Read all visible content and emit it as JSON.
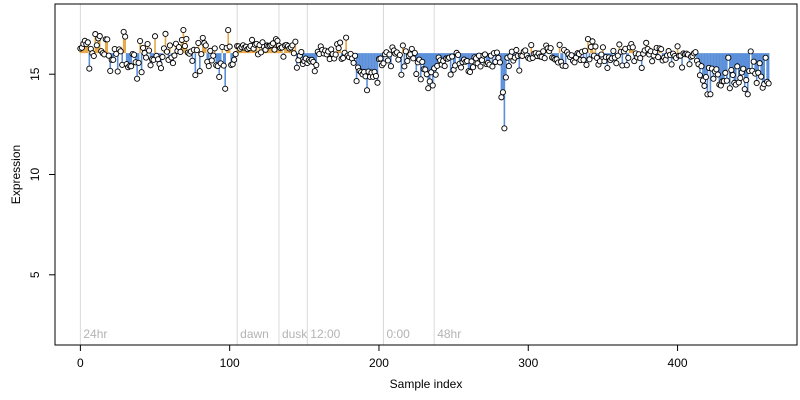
{
  "chart_data": {
    "type": "scatter",
    "title": "",
    "xlabel": "Sample index",
    "ylabel": "Expression",
    "xlim": [
      -17,
      480
    ],
    "ylim": [
      1.5,
      18.5
    ],
    "x_ticks": [
      0,
      100,
      200,
      300,
      400
    ],
    "y_ticks": [
      5,
      10,
      15
    ],
    "baseline": 16.05,
    "n_points": 462,
    "colors": {
      "above_baseline": "#e6a84a",
      "below_baseline": "#5b8fd9",
      "point_fill": "#ffffff",
      "point_stroke": "#000000",
      "event_line": "#d9d9d9",
      "event_text": "#b3b3b3"
    },
    "events": [
      {
        "label": "24hr",
        "x": 0
      },
      {
        "label": "dawn",
        "x": 105
      },
      {
        "label": "dusk",
        "x": 133
      },
      {
        "label": "12:00",
        "x": 152
      },
      {
        "label": "0:00",
        "x": 203
      },
      {
        "label": "48hr",
        "x": 237
      }
    ],
    "segments": [
      {
        "x0": 0,
        "x1": 20,
        "mean": 16.3,
        "sd": 0.35
      },
      {
        "x0": 20,
        "x1": 105,
        "mean": 16.1,
        "sd": 0.5
      },
      {
        "x0": 88,
        "x1": 98,
        "mean": 15.6,
        "sd": 0.6
      },
      {
        "x0": 105,
        "x1": 145,
        "mean": 16.4,
        "sd": 0.18
      },
      {
        "x0": 145,
        "x1": 160,
        "mean": 15.7,
        "sd": 0.35
      },
      {
        "x0": 160,
        "x1": 185,
        "mean": 16.0,
        "sd": 0.3
      },
      {
        "x0": 185,
        "x1": 200,
        "mean": 14.9,
        "sd": 0.35
      },
      {
        "x0": 200,
        "x1": 225,
        "mean": 15.9,
        "sd": 0.35
      },
      {
        "x0": 225,
        "x1": 240,
        "mean": 15.1,
        "sd": 0.4
      },
      {
        "x0": 240,
        "x1": 282,
        "mean": 15.7,
        "sd": 0.3
      },
      {
        "x0": 282,
        "x1": 286,
        "mean": 13.8,
        "sd": 0.6
      },
      {
        "x0": 286,
        "x1": 340,
        "mean": 15.9,
        "sd": 0.35
      },
      {
        "x0": 340,
        "x1": 415,
        "mean": 15.9,
        "sd": 0.3
      },
      {
        "x0": 415,
        "x1": 462,
        "mean": 15.0,
        "sd": 0.45
      }
    ],
    "outliers": [
      {
        "x": 284,
        "y": 12.3
      },
      {
        "x": 283,
        "y": 14.1
      },
      {
        "x": 422,
        "y": 14.0
      },
      {
        "x": 447,
        "y": 14.0
      },
      {
        "x": 192,
        "y": 14.2
      },
      {
        "x": 233,
        "y": 14.3
      },
      {
        "x": 10,
        "y": 17.0
      },
      {
        "x": 13,
        "y": 16.9
      }
    ]
  }
}
